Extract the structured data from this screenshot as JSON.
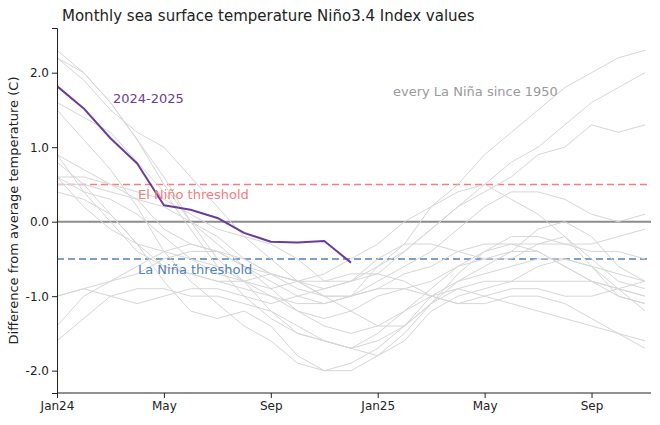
{
  "chart_data": {
    "type": "line",
    "title": "Monthly sea surface temperature Niño3.4 Index values",
    "y_label": "Difference from average temperature (C)",
    "categories": [
      "Jan24",
      null,
      null,
      null,
      "May",
      null,
      null,
      null,
      "Sep",
      null,
      null,
      null,
      "Jan25",
      null,
      null,
      null,
      "May",
      null,
      null,
      null,
      "Sep",
      null,
      null
    ],
    "ylim": [
      -2.3,
      2.6
    ],
    "yticks": [
      {
        "value": -2,
        "label": "-2.0"
      },
      {
        "value": -1,
        "label": "-1.0"
      },
      {
        "value": 0,
        "label": "0.0"
      },
      {
        "value": 1,
        "label": "1.0"
      },
      {
        "value": 2,
        "label": "2.0"
      }
    ],
    "grid": false,
    "annotations": [
      {
        "text": "every La Niña since 1950",
        "color": "#9a9a9a"
      }
    ],
    "reference_lines": [
      {
        "value": 0,
        "color": "#8c8c8c",
        "line_style": "solid"
      },
      {
        "value": 0.5,
        "label": "El Niño threshold",
        "color": "#f08080",
        "line_style": "dashed"
      },
      {
        "value": -0.5,
        "label": "La Niña threshold",
        "color": "#4f81bd",
        "line_style": "dashed"
      }
    ],
    "series": [
      {
        "color": "#d6d6d6",
        "values": [
          2.3,
          2.0,
          1.6,
          1.1,
          0.6,
          0.0,
          -0.5,
          -0.8,
          -1.0,
          -1.2,
          -1.4,
          -1.5,
          -1.4,
          -1.2,
          -1.0,
          -0.9,
          -1.0,
          -1.1,
          -1.2,
          -1.3,
          -1.4,
          -1.5,
          -1.6
        ]
      },
      {
        "color": "#d6d6d6",
        "values": [
          1.6,
          1.4,
          1.2,
          0.8,
          0.4,
          -0.1,
          -0.6,
          -1.0,
          -1.3,
          -1.5,
          -1.6,
          -1.7,
          -1.5,
          -1.2,
          -0.9,
          -0.6,
          -0.4,
          -0.3,
          -0.4,
          -0.6,
          -0.8,
          -1.0,
          -1.1
        ]
      },
      {
        "color": "#d6d6d6",
        "values": [
          2.2,
          2.0,
          1.6,
          1.1,
          0.5,
          0.0,
          -0.3,
          -0.6,
          -0.7,
          -0.8,
          -0.7,
          -0.5,
          -0.3,
          0.0,
          0.2,
          0.4,
          0.5,
          0.3,
          0.1,
          -0.2,
          -0.5,
          -0.8,
          -0.9
        ]
      },
      {
        "color": "#d6d6d6",
        "values": [
          1.5,
          1.1,
          0.7,
          0.2,
          -0.4,
          -0.8,
          -1.1,
          -1.4,
          -1.6,
          -1.9,
          -2.0,
          -2.0,
          -1.8,
          -1.6,
          -1.2,
          -1.0,
          -0.9,
          -0.8,
          -0.6,
          -0.5,
          -0.6,
          -0.9,
          -1.2
        ]
      },
      {
        "color": "#d6d6d6",
        "values": [
          0.8,
          0.5,
          0.1,
          -0.3,
          -0.8,
          -1.2,
          -1.3,
          -1.2,
          -1.4,
          -1.8,
          -2.0,
          -1.9,
          -1.7,
          -1.4,
          -1.1,
          -0.7,
          -0.4,
          -0.2,
          -0.2,
          -0.3,
          -0.3,
          -0.2,
          -0.1
        ]
      },
      {
        "color": "#d6d6d6",
        "values": [
          0.5,
          0.5,
          0.4,
          0.3,
          -0.1,
          -0.3,
          -0.4,
          -0.6,
          -0.9,
          -1.2,
          -1.3,
          -1.2,
          -1.0,
          -0.9,
          -0.8,
          -0.6,
          -0.5,
          -0.4,
          -0.4,
          -0.6,
          -0.8,
          -0.9,
          -1.0
        ]
      },
      {
        "color": "#d6d6d6",
        "values": [
          -1.0,
          -0.9,
          -0.8,
          -0.7,
          -0.5,
          -0.4,
          -0.4,
          -0.5,
          -0.7,
          -0.8,
          -1.0,
          -1.0,
          -0.9,
          -0.9,
          -1.0,
          -1.1,
          -1.0,
          -0.9,
          -0.9,
          -1.0,
          -1.0,
          -0.9,
          -0.8
        ]
      },
      {
        "color": "#d6d6d6",
        "values": [
          -1.0,
          -0.9,
          -1.0,
          -1.1,
          -1.0,
          -0.9,
          -0.9,
          -1.0,
          -1.1,
          -1.0,
          -0.9,
          -0.8,
          -0.7,
          -0.4,
          -0.1,
          0.2,
          0.5,
          0.8,
          1.0,
          1.3,
          1.6,
          1.8,
          2.0
        ]
      },
      {
        "color": "#d6d6d6",
        "values": [
          -1.6,
          -1.3,
          -1.0,
          -0.9,
          -0.9,
          -1.0,
          -1.0,
          -1.1,
          -1.2,
          -1.4,
          -1.6,
          -1.7,
          -1.6,
          -1.4,
          -1.0,
          -0.8,
          -0.7,
          -0.6,
          -0.5,
          -0.5,
          -0.6,
          -0.7,
          -0.8
        ]
      },
      {
        "color": "#d6d6d6",
        "values": [
          -1.4,
          -1.0,
          -0.8,
          -0.6,
          -0.4,
          -0.3,
          -0.4,
          -0.6,
          -0.8,
          -1.0,
          -1.1,
          -1.0,
          -0.8,
          -0.6,
          -0.4,
          -0.1,
          0.2,
          0.4,
          0.4,
          0.3,
          0.1,
          0.0,
          0.1
        ]
      },
      {
        "color": "#d6d6d6",
        "values": [
          0.6,
          0.6,
          0.5,
          0.4,
          0.3,
          0.1,
          -0.1,
          -0.2,
          -0.3,
          -0.5,
          -0.8,
          -0.8,
          -0.6,
          -0.4,
          -0.1,
          0.2,
          0.4,
          0.6,
          0.9,
          1.0,
          1.3,
          1.2,
          1.3
        ]
      },
      {
        "color": "#d6d6d6",
        "values": [
          0.4,
          0.3,
          0.1,
          -0.3,
          -0.6,
          -0.7,
          -0.8,
          -0.8,
          -0.9,
          -0.8,
          -0.8,
          -0.7,
          -0.7,
          -0.8,
          -1.0,
          -1.1,
          -1.1,
          -1.0,
          -1.0,
          -1.1,
          -1.3,
          -1.5,
          -1.7
        ]
      },
      {
        "color": "#d6d6d6",
        "values": [
          0.9,
          0.4,
          0.0,
          -0.4,
          -0.6,
          -0.7,
          -0.8,
          -0.9,
          -1.0,
          -1.1,
          -1.1,
          -1.0,
          -0.6,
          -0.3,
          0.2,
          0.5,
          0.9,
          1.2,
          1.5,
          1.8,
          2.0,
          2.2,
          2.3
        ]
      },
      {
        "color": "#d6d6d6",
        "values": [
          0.6,
          0.4,
          0.3,
          0.1,
          -0.2,
          -0.5,
          -0.7,
          -0.8,
          -0.7,
          -0.8,
          -1.0,
          -1.2,
          -1.4,
          -1.4,
          -1.1,
          -0.9,
          -0.8,
          -0.8,
          -0.8,
          -0.8,
          -0.8,
          -0.9,
          -1.0
        ]
      },
      {
        "color": "#d6d6d6",
        "values": [
          2.2,
          1.9,
          1.5,
          1.2,
          1.0,
          0.6,
          0.2,
          -0.2,
          -0.5,
          -0.8,
          -0.9,
          -0.8,
          -0.5,
          -0.3,
          -0.3,
          -0.4,
          -0.5,
          -0.5,
          -0.3,
          -0.2,
          -0.6,
          -1.0,
          -1.1
        ]
      },
      {
        "color": "#d6d6d6",
        "values": [
          0.9,
          0.7,
          0.5,
          0.3,
          0.2,
          0.0,
          -0.2,
          -0.5,
          -0.7,
          -0.9,
          -1.0,
          -1.0,
          -0.9,
          -0.7,
          -0.6,
          -0.4,
          -0.3,
          -0.3,
          -0.3,
          -0.3,
          -0.4,
          -0.4,
          -0.5
        ]
      },
      {
        "color": "#d6d6d6",
        "values": [
          0.6,
          0.2,
          -0.1,
          -0.3,
          -0.4,
          -0.5,
          -0.6,
          -0.8,
          -1.2,
          -1.5,
          -1.6,
          -1.7,
          -1.8,
          -1.5,
          -1.1,
          -0.8,
          -0.6,
          -0.4,
          -0.1,
          0.0,
          -0.2,
          -0.6,
          -0.8
        ]
      },
      {
        "name": "2024-2025",
        "color": "#6a3d9a",
        "values": [
          1.82,
          1.52,
          1.12,
          0.78,
          0.22,
          0.16,
          0.05,
          -0.15,
          -0.27,
          -0.28,
          -0.26,
          -0.55,
          null,
          null,
          null,
          null,
          null,
          null,
          null,
          null,
          null,
          null,
          null
        ]
      }
    ]
  }
}
